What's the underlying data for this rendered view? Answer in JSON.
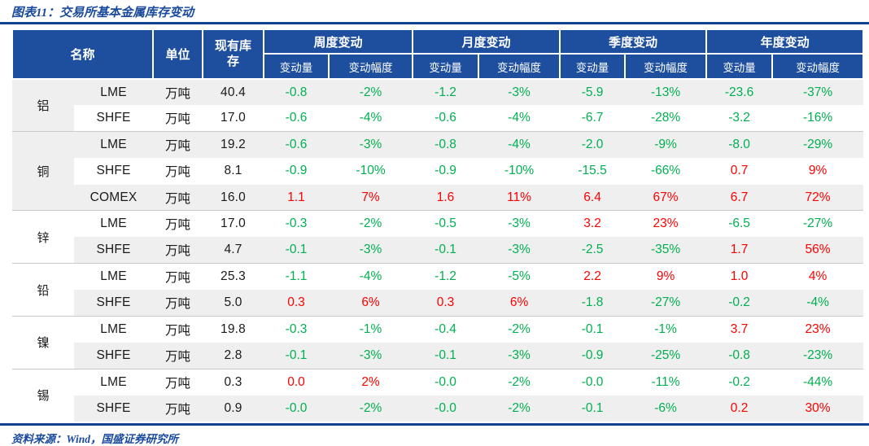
{
  "colors": {
    "header_blue": "#1e4f9e",
    "rule_blue": "#12408e",
    "title_blue": "#1a4a9c",
    "negative_green": "#00b050",
    "positive_red": "#ff0000",
    "stripe_gray": "#efefef"
  },
  "chart_data": {
    "type": "table",
    "title": "图表11：交易所基本金属库存变动",
    "source": "资料来源：Wind，国盛证券研究所",
    "header": {
      "name": "名称",
      "unit": "单位",
      "stock": "现有库存",
      "groups": [
        "周度变动",
        "月度变动",
        "季度变动",
        "年度变动"
      ],
      "sub_qty": "变动量",
      "sub_pct": "变动幅度"
    },
    "rows": [
      {
        "metal": "铝",
        "span": 2,
        "exchange": "LME",
        "unit": "万吨",
        "stock": "40.4",
        "cells": [
          {
            "v": "-0.8",
            "c": "g"
          },
          {
            "v": "-2%",
            "c": "g"
          },
          {
            "v": "-1.2",
            "c": "g"
          },
          {
            "v": "-3%",
            "c": "g"
          },
          {
            "v": "-5.9",
            "c": "g"
          },
          {
            "v": "-13%",
            "c": "g"
          },
          {
            "v": "-23.6",
            "c": "g"
          },
          {
            "v": "-37%",
            "c": "g"
          }
        ]
      },
      {
        "metal": null,
        "span": 0,
        "exchange": "SHFE",
        "unit": "万吨",
        "stock": "17.0",
        "cells": [
          {
            "v": "-0.6",
            "c": "g"
          },
          {
            "v": "-4%",
            "c": "g"
          },
          {
            "v": "-0.6",
            "c": "g"
          },
          {
            "v": "-4%",
            "c": "g"
          },
          {
            "v": "-6.7",
            "c": "g"
          },
          {
            "v": "-28%",
            "c": "g"
          },
          {
            "v": "-3.2",
            "c": "g"
          },
          {
            "v": "-16%",
            "c": "g"
          }
        ]
      },
      {
        "metal": "铜",
        "span": 3,
        "exchange": "LME",
        "unit": "万吨",
        "stock": "19.2",
        "cells": [
          {
            "v": "-0.6",
            "c": "g"
          },
          {
            "v": "-3%",
            "c": "g"
          },
          {
            "v": "-0.8",
            "c": "g"
          },
          {
            "v": "-4%",
            "c": "g"
          },
          {
            "v": "-2.0",
            "c": "g"
          },
          {
            "v": "-9%",
            "c": "g"
          },
          {
            "v": "-8.0",
            "c": "g"
          },
          {
            "v": "-29%",
            "c": "g"
          }
        ]
      },
      {
        "metal": null,
        "span": 0,
        "exchange": "SHFE",
        "unit": "万吨",
        "stock": "8.1",
        "cells": [
          {
            "v": "-0.9",
            "c": "g"
          },
          {
            "v": "-10%",
            "c": "g"
          },
          {
            "v": "-0.9",
            "c": "g"
          },
          {
            "v": "-10%",
            "c": "g"
          },
          {
            "v": "-15.5",
            "c": "g"
          },
          {
            "v": "-66%",
            "c": "g"
          },
          {
            "v": "0.7",
            "c": "r"
          },
          {
            "v": "9%",
            "c": "r"
          }
        ]
      },
      {
        "metal": null,
        "span": 0,
        "exchange": "COMEX",
        "unit": "万吨",
        "stock": "16.0",
        "cells": [
          {
            "v": "1.1",
            "c": "r"
          },
          {
            "v": "7%",
            "c": "r"
          },
          {
            "v": "1.6",
            "c": "r"
          },
          {
            "v": "11%",
            "c": "r"
          },
          {
            "v": "6.4",
            "c": "r"
          },
          {
            "v": "67%",
            "c": "r"
          },
          {
            "v": "6.7",
            "c": "r"
          },
          {
            "v": "72%",
            "c": "r"
          }
        ]
      },
      {
        "metal": "锌",
        "span": 2,
        "exchange": "LME",
        "unit": "万吨",
        "stock": "17.0",
        "cells": [
          {
            "v": "-0.3",
            "c": "g"
          },
          {
            "v": "-2%",
            "c": "g"
          },
          {
            "v": "-0.5",
            "c": "g"
          },
          {
            "v": "-3%",
            "c": "g"
          },
          {
            "v": "3.2",
            "c": "r"
          },
          {
            "v": "23%",
            "c": "r"
          },
          {
            "v": "-6.5",
            "c": "g"
          },
          {
            "v": "-27%",
            "c": "g"
          }
        ]
      },
      {
        "metal": null,
        "span": 0,
        "exchange": "SHFE",
        "unit": "万吨",
        "stock": "4.7",
        "cells": [
          {
            "v": "-0.1",
            "c": "g"
          },
          {
            "v": "-3%",
            "c": "g"
          },
          {
            "v": "-0.1",
            "c": "g"
          },
          {
            "v": "-3%",
            "c": "g"
          },
          {
            "v": "-2.5",
            "c": "g"
          },
          {
            "v": "-35%",
            "c": "g"
          },
          {
            "v": "1.7",
            "c": "r"
          },
          {
            "v": "56%",
            "c": "r"
          }
        ]
      },
      {
        "metal": "铅",
        "span": 2,
        "exchange": "LME",
        "unit": "万吨",
        "stock": "25.3",
        "cells": [
          {
            "v": "-1.1",
            "c": "g"
          },
          {
            "v": "-4%",
            "c": "g"
          },
          {
            "v": "-1.2",
            "c": "g"
          },
          {
            "v": "-5%",
            "c": "g"
          },
          {
            "v": "2.2",
            "c": "r"
          },
          {
            "v": "9%",
            "c": "r"
          },
          {
            "v": "1.0",
            "c": "r"
          },
          {
            "v": "4%",
            "c": "r"
          }
        ]
      },
      {
        "metal": null,
        "span": 0,
        "exchange": "SHFE",
        "unit": "万吨",
        "stock": "5.0",
        "cells": [
          {
            "v": "0.3",
            "c": "r"
          },
          {
            "v": "6%",
            "c": "r"
          },
          {
            "v": "0.3",
            "c": "r"
          },
          {
            "v": "6%",
            "c": "r"
          },
          {
            "v": "-1.8",
            "c": "g"
          },
          {
            "v": "-27%",
            "c": "g"
          },
          {
            "v": "-0.2",
            "c": "g"
          },
          {
            "v": "-4%",
            "c": "g"
          }
        ]
      },
      {
        "metal": "镍",
        "span": 2,
        "exchange": "LME",
        "unit": "万吨",
        "stock": "19.8",
        "cells": [
          {
            "v": "-0.3",
            "c": "g"
          },
          {
            "v": "-1%",
            "c": "g"
          },
          {
            "v": "-0.4",
            "c": "g"
          },
          {
            "v": "-2%",
            "c": "g"
          },
          {
            "v": "-0.1",
            "c": "g"
          },
          {
            "v": "-1%",
            "c": "g"
          },
          {
            "v": "3.7",
            "c": "r"
          },
          {
            "v": "23%",
            "c": "r"
          }
        ]
      },
      {
        "metal": null,
        "span": 0,
        "exchange": "SHFE",
        "unit": "万吨",
        "stock": "2.8",
        "cells": [
          {
            "v": "-0.1",
            "c": "g"
          },
          {
            "v": "-3%",
            "c": "g"
          },
          {
            "v": "-0.1",
            "c": "g"
          },
          {
            "v": "-3%",
            "c": "g"
          },
          {
            "v": "-0.9",
            "c": "g"
          },
          {
            "v": "-25%",
            "c": "g"
          },
          {
            "v": "-0.8",
            "c": "g"
          },
          {
            "v": "-23%",
            "c": "g"
          }
        ]
      },
      {
        "metal": "锡",
        "span": 2,
        "exchange": "LME",
        "unit": "万吨",
        "stock": "0.3",
        "cells": [
          {
            "v": "0.0",
            "c": "r"
          },
          {
            "v": "2%",
            "c": "r"
          },
          {
            "v": "-0.0",
            "c": "g"
          },
          {
            "v": "-2%",
            "c": "g"
          },
          {
            "v": "-0.0",
            "c": "g"
          },
          {
            "v": "-11%",
            "c": "g"
          },
          {
            "v": "-0.2",
            "c": "g"
          },
          {
            "v": "-44%",
            "c": "g"
          }
        ]
      },
      {
        "metal": null,
        "span": 0,
        "exchange": "SHFE",
        "unit": "万吨",
        "stock": "0.9",
        "cells": [
          {
            "v": "-0.0",
            "c": "g"
          },
          {
            "v": "-2%",
            "c": "g"
          },
          {
            "v": "-0.0",
            "c": "g"
          },
          {
            "v": "-2%",
            "c": "g"
          },
          {
            "v": "-0.1",
            "c": "g"
          },
          {
            "v": "-6%",
            "c": "g"
          },
          {
            "v": "0.2",
            "c": "r"
          },
          {
            "v": "30%",
            "c": "r"
          }
        ]
      }
    ]
  }
}
